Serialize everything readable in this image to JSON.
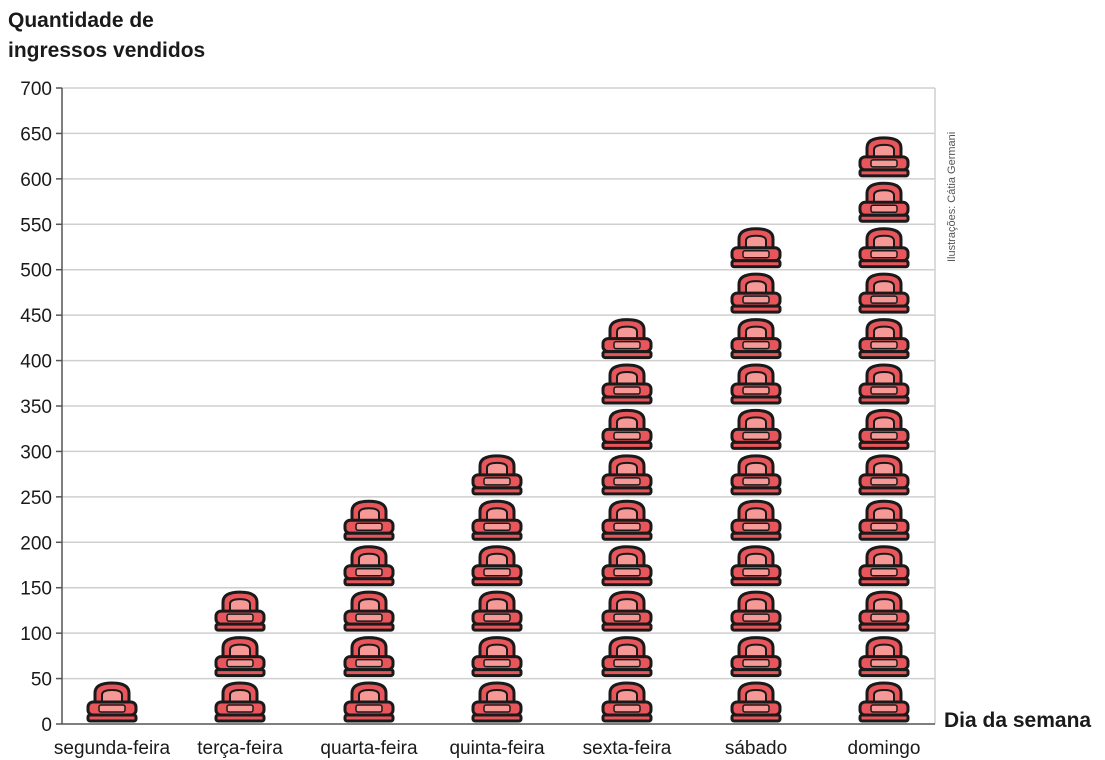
{
  "chart_data": {
    "type": "bar",
    "style": "pictogram",
    "icon": "armchair-icon",
    "icon_value": 50,
    "ylabel_line1": "Quantidade de",
    "ylabel_line2": "ingressos vendidos",
    "xlabel": "Dia da semana",
    "credit": "Ilustrações: Cátia Germani",
    "categories": [
      "segunda-feira",
      "terça-feira",
      "quarta-feira",
      "quinta-feira",
      "sexta-feira",
      "sábado",
      "domingo"
    ],
    "values": [
      50,
      150,
      250,
      300,
      450,
      550,
      650
    ],
    "ylim": [
      0,
      700
    ],
    "yticks": [
      0,
      50,
      100,
      150,
      200,
      250,
      300,
      350,
      400,
      450,
      500,
      550,
      600,
      650,
      700
    ],
    "grid": true,
    "colors": {
      "icon_fill": "#e8555a",
      "icon_light": "#f59896",
      "icon_stroke": "#1a1a1a",
      "grid": "#cfcfcf",
      "axis": "#555555"
    }
  }
}
